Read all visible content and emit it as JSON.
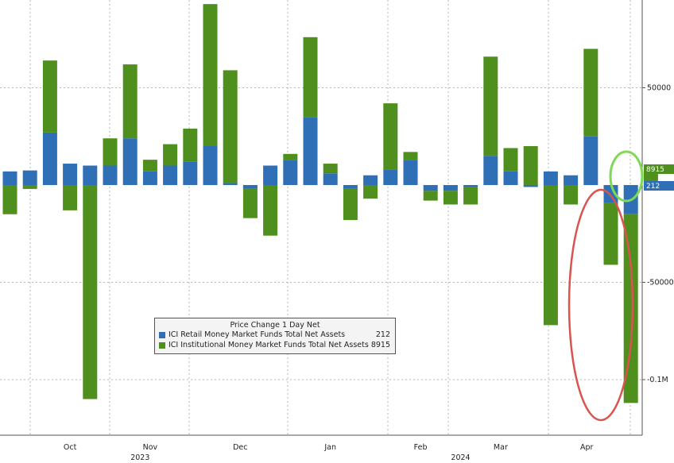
{
  "chart_data": {
    "type": "bar",
    "stacked": true,
    "title": "Price Change 1 Day Net",
    "ylim": [
      -125000,
      95000
    ],
    "y_ticks": [
      {
        "value": 50000,
        "label": "50000"
      },
      {
        "value": -50000,
        "label": "-50000"
      },
      {
        "value": -100000,
        "label": "-0.1M"
      }
    ],
    "months": [
      {
        "label": "Oct",
        "x": 3
      },
      {
        "label": "Nov",
        "x": 7
      },
      {
        "label": "Dec",
        "x": 11.5
      },
      {
        "label": "Jan",
        "x": 16
      },
      {
        "label": "Feb",
        "x": 20.5
      },
      {
        "label": "Mar",
        "x": 24.5
      },
      {
        "label": "Apr",
        "x": 28.8
      }
    ],
    "years": [
      {
        "label": "2023",
        "x": 6.5
      },
      {
        "label": "2024",
        "x": 22.5
      }
    ],
    "grid": true,
    "legend_position": "bottom-center",
    "series": [
      {
        "name": "ICI Retail Money Market Funds Total Net Assets",
        "color": "#2e6fb5",
        "last_value": "212",
        "values": [
          7000,
          7500,
          27000,
          11000,
          10000,
          10000,
          24000,
          7000,
          10000,
          12000,
          20000,
          1000,
          -2000,
          10000,
          13000,
          35000,
          6000,
          -2000,
          5000,
          8000,
          13000,
          -3000,
          -3000,
          -1000,
          15000,
          7000,
          -1000,
          7000,
          5000,
          25000,
          -9000,
          -15000,
          212
        ]
      },
      {
        "name": "ICI Institutional Money Market Funds Total Net Assets",
        "color": "#4f8f1e",
        "last_value": "8915",
        "values": [
          -15000,
          -2000,
          37000,
          -13000,
          -110000,
          14000,
          38000,
          6000,
          11000,
          17000,
          73000,
          58000,
          -15000,
          -26000,
          3000,
          41000,
          5000,
          -16000,
          -7000,
          34000,
          4000,
          -5000,
          -7000,
          -9000,
          51000,
          12000,
          20000,
          -72000,
          -10000,
          45000,
          -32000,
          -97000,
          8915
        ]
      }
    ]
  },
  "callouts": {
    "retail_value": "212",
    "institutional_value": "8915"
  }
}
